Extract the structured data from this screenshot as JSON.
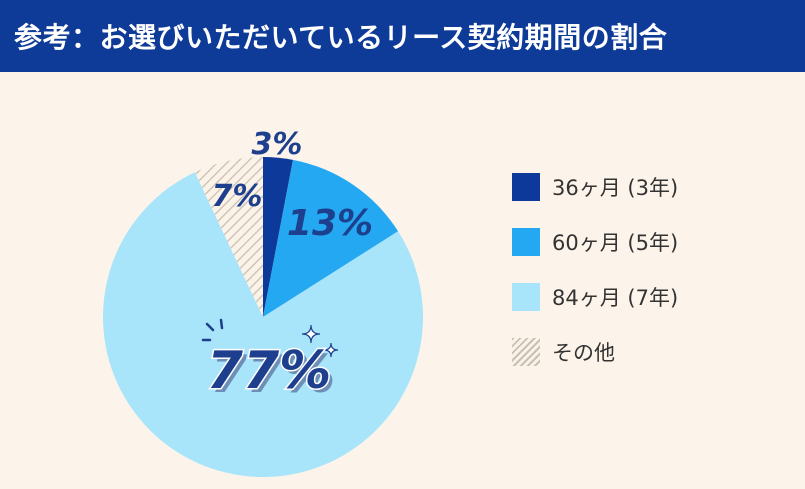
{
  "header": {
    "title": "参考：お選びいただいているリース契約期間の割合"
  },
  "colors": {
    "header_bg": "#0e3b98",
    "background": "#fcf4ea",
    "slice_36": "#0d3a9a",
    "slice_60": "#23a8f1",
    "slice_84": "#a8e4fa",
    "slice_other_stripe": "#c9bfb5",
    "label_dark": "#1d3f8e"
  },
  "chart_data": {
    "type": "pie",
    "title": "",
    "legend_position": "right",
    "slices": [
      {
        "label": "36ヶ月 (3年)",
        "value": 3,
        "display": "3%",
        "color": "#0d3a9a",
        "pattern": "solid"
      },
      {
        "label": "60ヶ月 (5年)",
        "value": 13,
        "display": "13%",
        "color": "#23a8f1",
        "pattern": "solid"
      },
      {
        "label": "84ヶ月 (7年)",
        "value": 77,
        "display": "77%",
        "color": "#a8e4fa",
        "pattern": "solid"
      },
      {
        "label": "その他",
        "value": 7,
        "display": "7%",
        "color": "#c9bfb5",
        "pattern": "hatch"
      }
    ]
  },
  "legend": {
    "items": [
      {
        "label": "36ヶ月 (3年)"
      },
      {
        "label": "60ヶ月 (5年)"
      },
      {
        "label": "84ヶ月 (7年)"
      },
      {
        "label": "その他"
      }
    ]
  }
}
